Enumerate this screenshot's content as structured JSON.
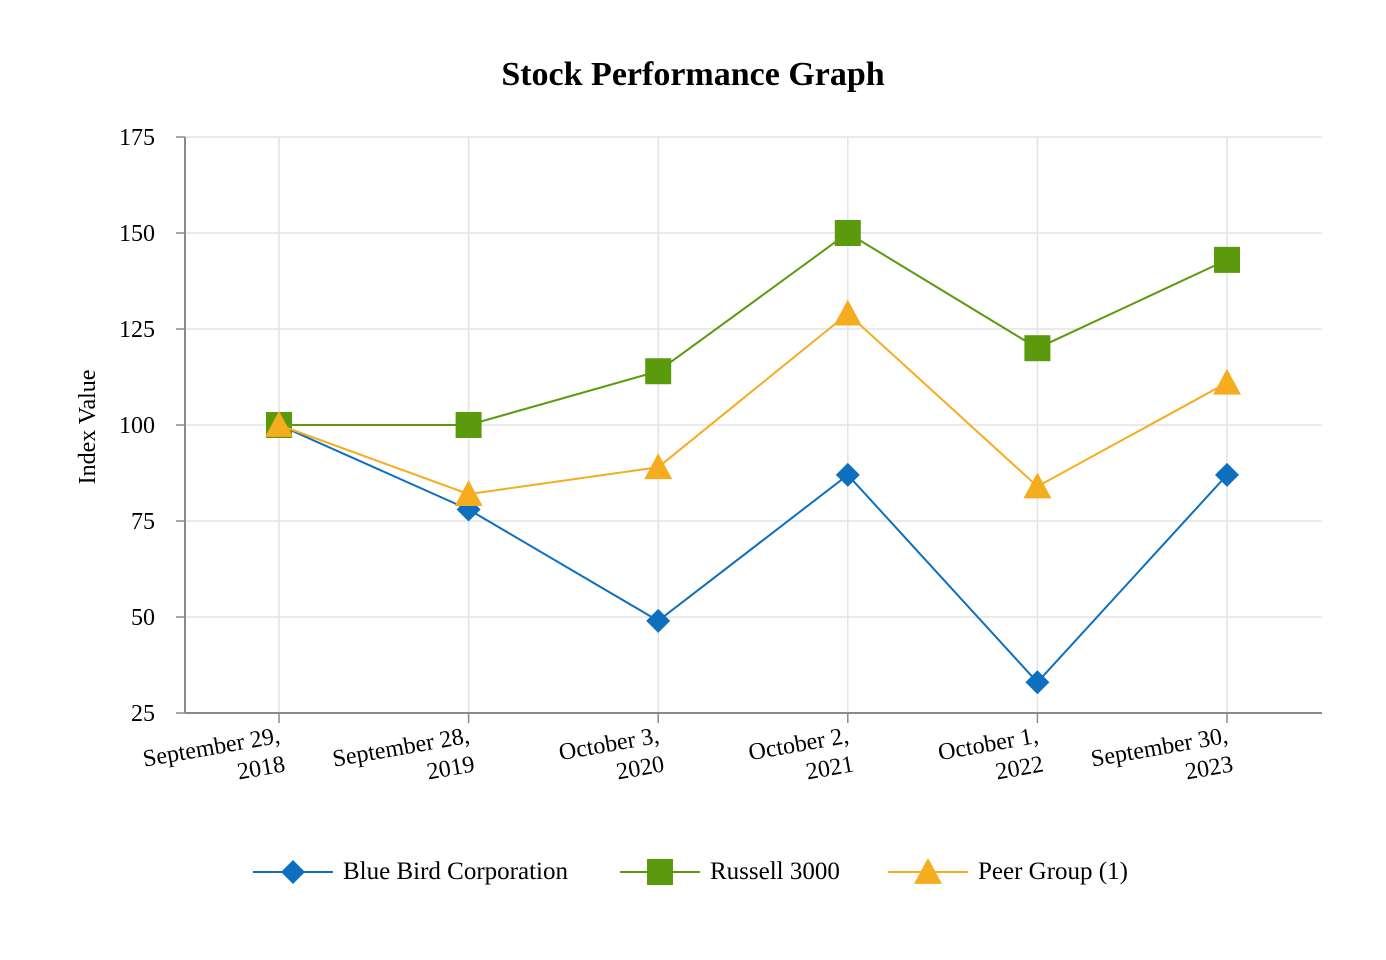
{
  "chart_data": {
    "type": "line",
    "title": "Stock Performance Graph",
    "xlabel": "",
    "ylabel": "Index Value",
    "ylim": [
      25,
      175
    ],
    "yticks": [
      "25",
      "50",
      "75",
      "100",
      "125",
      "150",
      "175"
    ],
    "grid": true,
    "legend_position": "bottom",
    "categories": [
      [
        "September 29,",
        "2018"
      ],
      [
        "September 28,",
        "2019"
      ],
      [
        "October 3,",
        "2020"
      ],
      [
        "October 2,",
        "2021"
      ],
      [
        "October 1,",
        "2022"
      ],
      [
        "September 30,",
        "2023"
      ]
    ],
    "series": [
      {
        "name": "Blue Bird Corporation",
        "color": "#0e6fbf",
        "marker": "diamond",
        "values": [
          100,
          78,
          49,
          87,
          33,
          87
        ]
      },
      {
        "name": "Russell 3000",
        "color": "#5a9a0c",
        "marker": "square",
        "values": [
          100,
          100,
          114,
          150,
          120,
          143
        ]
      },
      {
        "name": "Peer Group (1)",
        "color": "#f5ac1e",
        "marker": "triangle",
        "values": [
          100,
          82,
          89,
          129,
          84,
          111
        ]
      }
    ]
  }
}
